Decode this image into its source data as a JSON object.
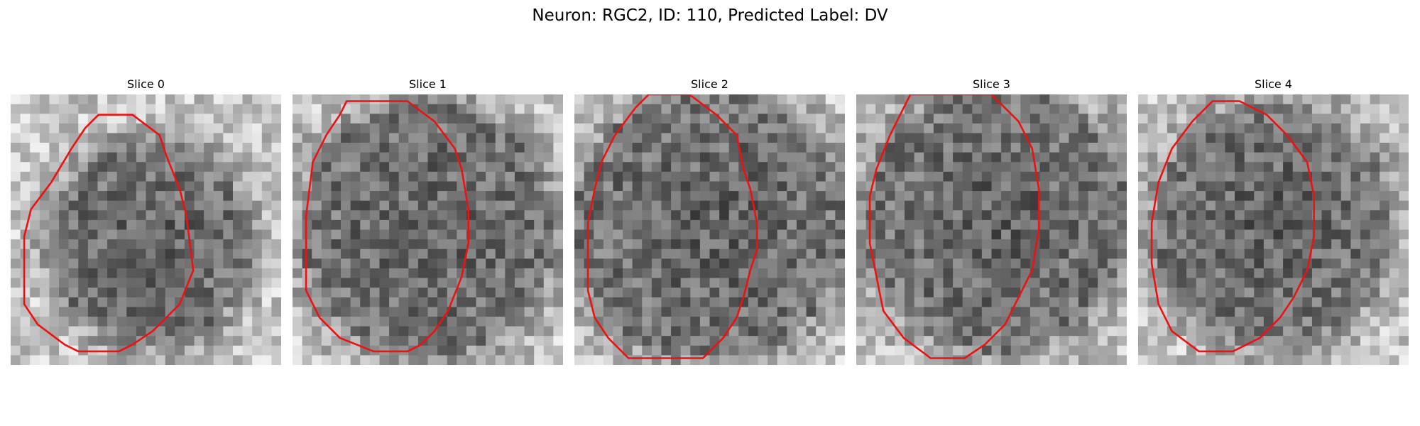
{
  "figure": {
    "title": "Neuron: RGC2, ID: 110, Predicted Label: DV"
  },
  "panels": [
    {
      "title": "Slice 0",
      "seed": 11,
      "dark_radius": 0.37,
      "dark_cx": 0.52,
      "dark_cy": 0.55,
      "contour": [
        [
          13,
          3
        ],
        [
          18,
          3
        ],
        [
          22,
          6
        ],
        [
          23,
          9
        ],
        [
          25,
          14
        ],
        [
          26,
          18
        ],
        [
          27,
          26
        ],
        [
          25,
          31
        ],
        [
          21,
          35
        ],
        [
          18,
          37
        ],
        [
          16,
          38
        ],
        [
          10,
          38
        ],
        [
          8,
          37
        ],
        [
          4,
          34
        ],
        [
          2,
          31
        ],
        [
          2,
          21
        ],
        [
          3,
          17
        ],
        [
          6,
          13
        ],
        [
          9,
          8
        ],
        [
          11,
          5
        ]
      ]
    },
    {
      "title": "Slice 1",
      "seed": 23,
      "dark_radius": 0.47,
      "dark_cx": 0.5,
      "dark_cy": 0.5,
      "contour": [
        [
          8,
          1
        ],
        [
          17,
          1
        ],
        [
          21,
          4
        ],
        [
          24,
          8
        ],
        [
          25,
          11
        ],
        [
          26,
          17
        ],
        [
          26,
          22
        ],
        [
          25,
          27
        ],
        [
          23,
          32
        ],
        [
          21,
          35
        ],
        [
          19,
          37
        ],
        [
          17,
          38
        ],
        [
          12,
          38
        ],
        [
          7,
          36
        ],
        [
          4,
          33
        ],
        [
          2,
          29
        ],
        [
          2,
          18
        ],
        [
          3,
          10
        ],
        [
          5,
          6
        ],
        [
          7,
          3
        ]
      ]
    },
    {
      "title": "Slice 2",
      "seed": 37,
      "dark_radius": 0.5,
      "dark_cx": 0.5,
      "dark_cy": 0.48,
      "contour": [
        [
          11,
          0
        ],
        [
          17,
          0
        ],
        [
          21,
          3
        ],
        [
          24,
          6
        ],
        [
          25,
          11
        ],
        [
          26,
          14
        ],
        [
          27,
          19
        ],
        [
          27,
          23
        ],
        [
          26,
          26
        ],
        [
          25,
          30
        ],
        [
          24,
          33
        ],
        [
          22,
          36
        ],
        [
          19,
          39
        ],
        [
          8,
          39
        ],
        [
          5,
          36
        ],
        [
          3,
          33
        ],
        [
          2,
          29
        ],
        [
          2,
          19
        ],
        [
          3,
          14
        ],
        [
          4,
          10
        ],
        [
          6,
          6
        ],
        [
          9,
          2
        ]
      ]
    },
    {
      "title": "Slice 3",
      "seed": 49,
      "dark_radius": 0.49,
      "dark_cx": 0.52,
      "dark_cy": 0.46,
      "contour": [
        [
          8,
          0
        ],
        [
          20,
          0
        ],
        [
          24,
          4
        ],
        [
          26,
          8
        ],
        [
          27,
          14
        ],
        [
          27,
          20
        ],
        [
          26,
          26
        ],
        [
          24,
          30
        ],
        [
          22,
          34
        ],
        [
          19,
          37
        ],
        [
          16,
          39
        ],
        [
          11,
          39
        ],
        [
          7,
          36
        ],
        [
          4,
          32
        ],
        [
          3,
          27
        ],
        [
          2,
          22
        ],
        [
          2,
          15
        ],
        [
          3,
          11
        ],
        [
          5,
          6
        ]
      ]
    },
    {
      "title": "Slice 4",
      "seed": 61,
      "dark_radius": 0.44,
      "dark_cx": 0.5,
      "dark_cy": 0.48,
      "contour": [
        [
          11,
          1
        ],
        [
          15,
          1
        ],
        [
          19,
          3
        ],
        [
          22,
          6
        ],
        [
          25,
          10
        ],
        [
          26,
          15
        ],
        [
          26,
          21
        ],
        [
          25,
          26
        ],
        [
          23,
          30
        ],
        [
          21,
          33
        ],
        [
          18,
          36
        ],
        [
          14,
          38
        ],
        [
          9,
          38
        ],
        [
          5,
          35
        ],
        [
          3,
          31
        ],
        [
          2,
          25
        ],
        [
          2,
          19
        ],
        [
          3,
          13
        ],
        [
          5,
          8
        ],
        [
          8,
          4
        ]
      ]
    }
  ]
}
